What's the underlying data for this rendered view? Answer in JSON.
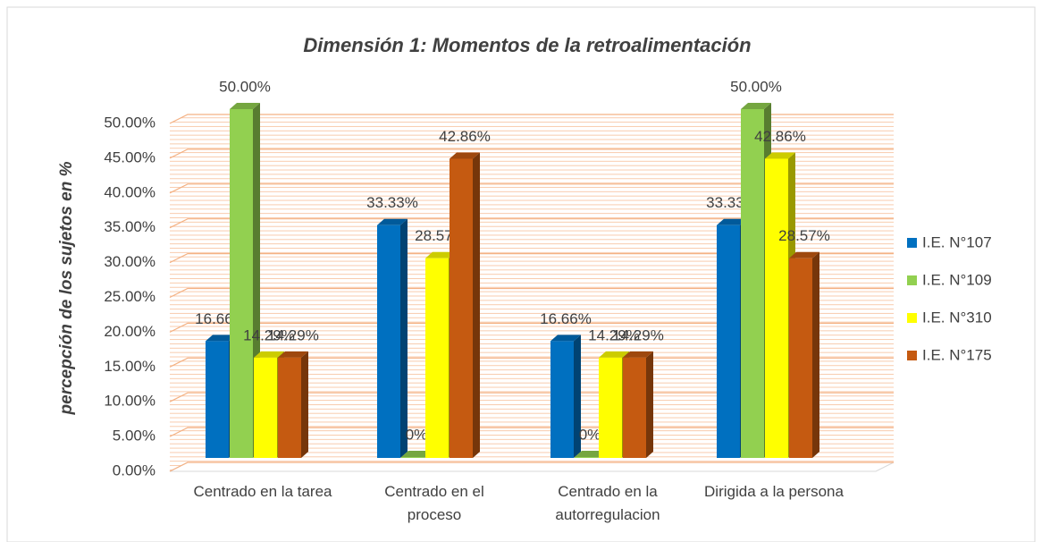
{
  "chart_data": {
    "type": "bar3d",
    "title": "Dimensión 1: Momentos de la retroalimentación",
    "y_label": "percepción de los sujetos en %",
    "categories": [
      "Centrado en la tarea",
      "Centrado en el proceso",
      "Centrado en la autorregulacion",
      "Dirigida a la persona"
    ],
    "series": [
      {
        "name": "I.E. N°107",
        "color": "#0070c0",
        "values": [
          16.66,
          33.33,
          16.66,
          33.33
        ],
        "value_labels": [
          "16.66%",
          "33.33%",
          "16.66%",
          "33.33%"
        ]
      },
      {
        "name": "I.E. N°109",
        "color": "#92d050",
        "values": [
          50.0,
          0,
          0,
          50.0
        ],
        "value_labels": [
          "50.00%",
          "0%",
          "0%",
          "50.00%"
        ]
      },
      {
        "name": "I.E. N°310",
        "color": "#ffff00",
        "values": [
          14.29,
          28.57,
          14.29,
          42.86
        ],
        "value_labels": [
          "14.29%",
          "28.57%",
          "14.29%",
          "42.86%"
        ]
      },
      {
        "name": "I.E. N°175",
        "color": "#c55a11",
        "values": [
          14.29,
          42.86,
          14.29,
          28.57
        ],
        "value_labels": [
          "14.29%",
          "42.86%",
          "14.29%",
          "28.57%"
        ]
      }
    ],
    "ylim": [
      0,
      50
    ],
    "yticks": [
      {
        "value": 0,
        "label": "0.00%"
      },
      {
        "value": 5,
        "label": "5.00%"
      },
      {
        "value": 10,
        "label": "10.00%"
      },
      {
        "value": 15,
        "label": "15.00%"
      },
      {
        "value": 20,
        "label": "20.00%"
      },
      {
        "value": 25,
        "label": "25.00%"
      },
      {
        "value": 30,
        "label": "30.00%"
      },
      {
        "value": 35,
        "label": "35.00%"
      },
      {
        "value": 40,
        "label": "40.00%"
      },
      {
        "value": 45,
        "label": "45.00%"
      },
      {
        "value": 50,
        "label": "50.00%"
      }
    ],
    "grid": true,
    "legend": "right"
  }
}
